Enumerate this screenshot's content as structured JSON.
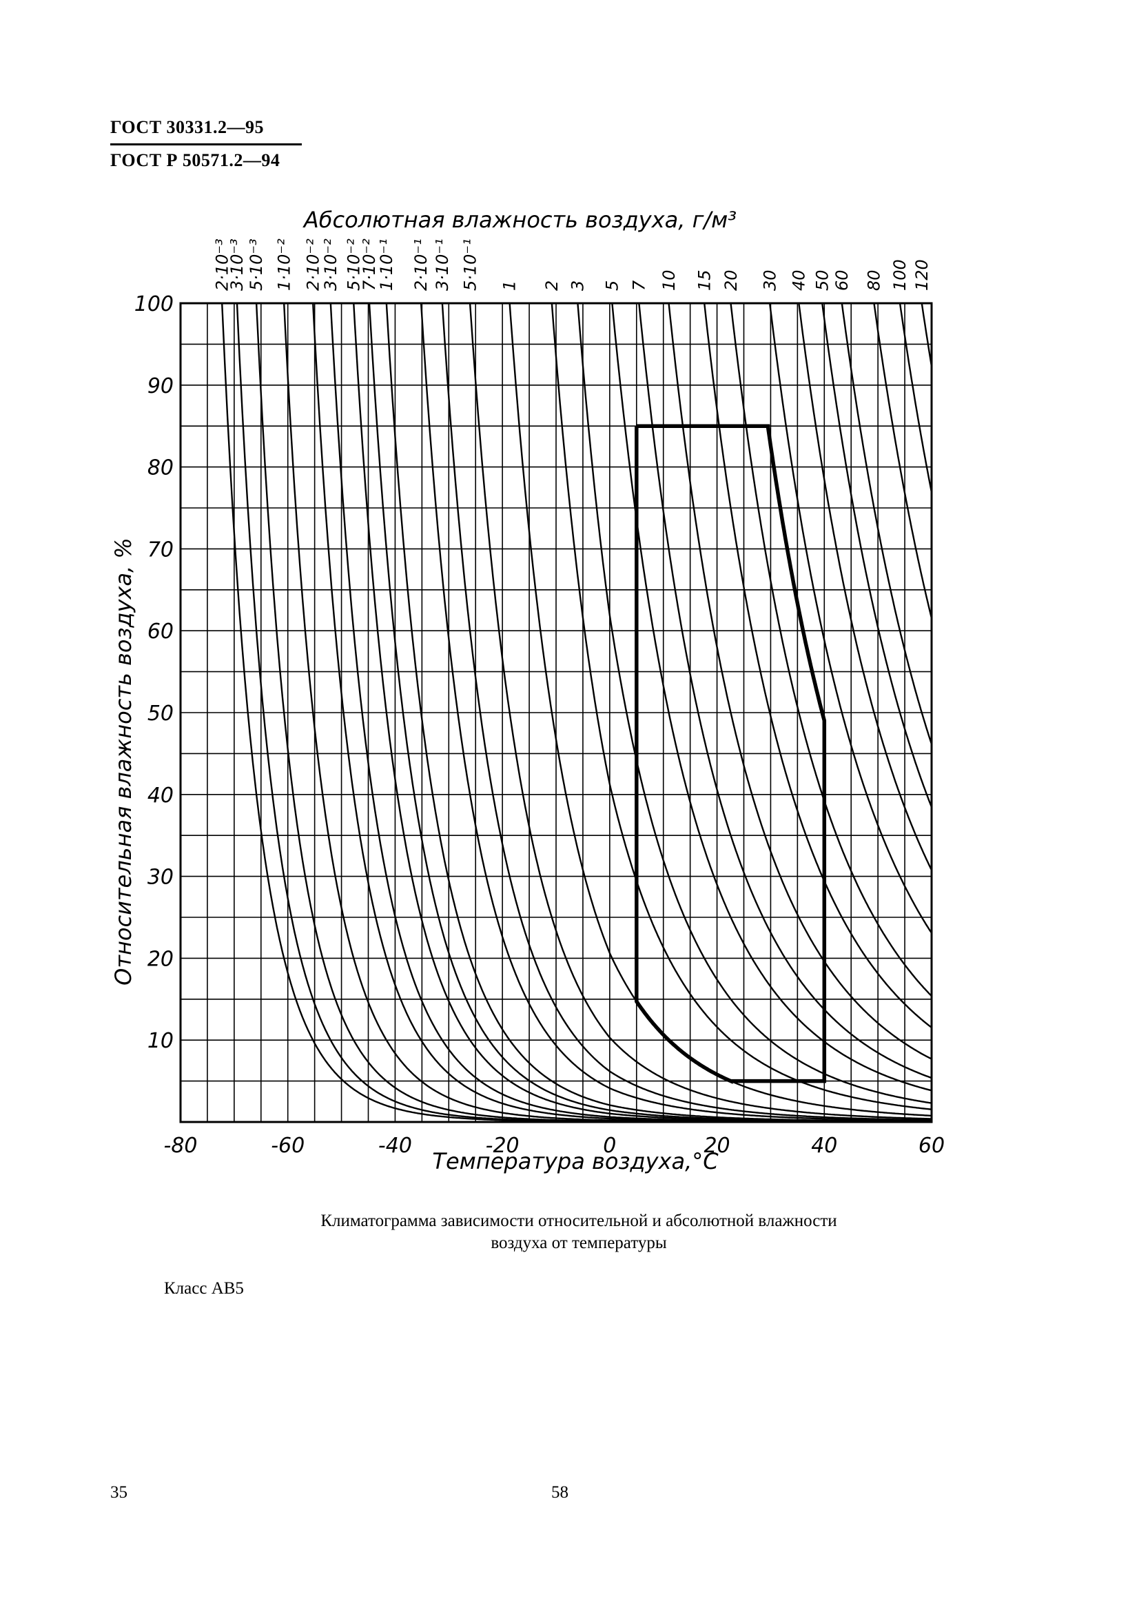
{
  "header": {
    "standard_1": "ГОСТ 30331.2—95",
    "standard_2": "ГОСТ Р 50571.2—94"
  },
  "caption": {
    "line1": "Климатограмма зависимости относительной и абсолютной влажности",
    "line2": "воздуха от температуры"
  },
  "class_label": "Класс АВ5",
  "page_numbers": {
    "left": "35",
    "center": "58"
  },
  "chart_data": {
    "type": "line",
    "top_axis_label": "Абсолютная влажность воздуха, г/м³",
    "xlabel": "Температура воздуха,°C",
    "ylabel": "Относительная влажность воздуха, %",
    "x_ticks": [
      "-80",
      "-60",
      "-40",
      "-20",
      "0",
      "20",
      "40",
      "60"
    ],
    "y_ticks": [
      "10",
      "20",
      "30",
      "40",
      "50",
      "60",
      "70",
      "80",
      "90",
      "100"
    ],
    "xlim": [
      -80,
      60
    ],
    "ylim": [
      0,
      100
    ],
    "grid": true,
    "absolute_humidity_lines": [
      {
        "label": "2·10⁻³",
        "value": 0.002
      },
      {
        "label": "3·10⁻³",
        "value": 0.003
      },
      {
        "label": "5·10⁻³",
        "value": 0.005
      },
      {
        "label": "1·10⁻²",
        "value": 0.01
      },
      {
        "label": "2·10⁻²",
        "value": 0.02
      },
      {
        "label": "3·10⁻²",
        "value": 0.03
      },
      {
        "label": "5·10⁻²",
        "value": 0.05
      },
      {
        "label": "7·10⁻²",
        "value": 0.07
      },
      {
        "label": "1·10⁻¹",
        "value": 0.1
      },
      {
        "label": "2·10⁻¹",
        "value": 0.2
      },
      {
        "label": "3·10⁻¹",
        "value": 0.3
      },
      {
        "label": "5·10⁻¹",
        "value": 0.5
      },
      {
        "label": "1",
        "value": 1
      },
      {
        "label": "2",
        "value": 2
      },
      {
        "label": "3",
        "value": 3
      },
      {
        "label": "5",
        "value": 5
      },
      {
        "label": "7",
        "value": 7
      },
      {
        "label": "10",
        "value": 10
      },
      {
        "label": "15",
        "value": 15
      },
      {
        "label": "20",
        "value": 20
      },
      {
        "label": "30",
        "value": 30
      },
      {
        "label": "40",
        "value": 40
      },
      {
        "label": "50",
        "value": 50
      },
      {
        "label": "60",
        "value": 60
      },
      {
        "label": "80",
        "value": 80
      },
      {
        "label": "100",
        "value": 100
      },
      {
        "label": "120",
        "value": 120
      }
    ],
    "climate_zone": {
      "temperature_range": [
        5,
        40
      ],
      "relative_humidity_range": [
        5,
        85
      ],
      "absolute_humidity_range": [
        1,
        25
      ]
    }
  }
}
